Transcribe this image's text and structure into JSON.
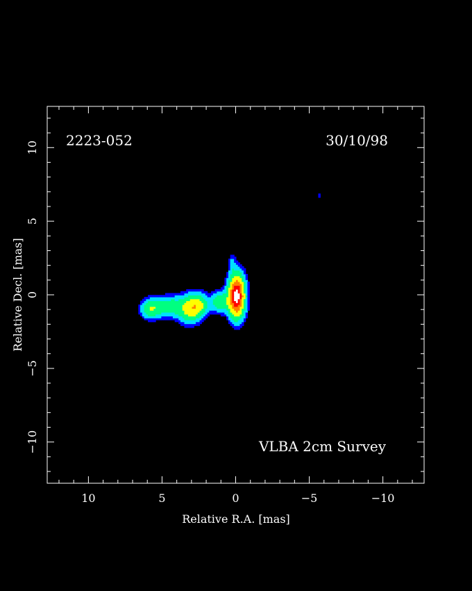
{
  "chart_data": {
    "type": "heatmap",
    "source_name": "2223-052",
    "date": "30/10/98",
    "survey_label": "VLBA 2cm Survey",
    "xlabel": "Relative R.A. [mas]",
    "ylabel": "Relative Decl. [mas]",
    "xlim": [
      12.8,
      -12.8
    ],
    "ylim": [
      -12.8,
      12.8
    ],
    "x_ticks": [
      10,
      5,
      0,
      -5,
      -10
    ],
    "y_ticks": [
      10,
      5,
      0,
      -5,
      -10
    ],
    "x_tick_labels": [
      "10",
      "5",
      "0",
      "−5",
      "−10"
    ],
    "y_tick_labels": [
      "10",
      "5",
      "0",
      "−5",
      "−10"
    ],
    "colormap": [
      "#0000ff",
      "#00e0ff",
      "#00ff80",
      "#ffff00",
      "#ff8000",
      "#ff0000",
      "#ffffff"
    ],
    "components": [
      {
        "x": 0.0,
        "y": 0.0,
        "peak": 1.0,
        "sx": 0.35,
        "sy": 0.9
      },
      {
        "x": 1.1,
        "y": -0.4,
        "peak": 0.28,
        "sx": 0.4,
        "sy": 0.45
      },
      {
        "x": 2.6,
        "y": -0.6,
        "peak": 0.3,
        "sx": 0.45,
        "sy": 0.5
      },
      {
        "x": 3.2,
        "y": -0.9,
        "peak": 0.34,
        "sx": 0.5,
        "sy": 0.6
      },
      {
        "x": 4.4,
        "y": -0.7,
        "peak": 0.22,
        "sx": 0.5,
        "sy": 0.45
      },
      {
        "x": 5.5,
        "y": -0.8,
        "peak": 0.22,
        "sx": 0.5,
        "sy": 0.45
      },
      {
        "x": 6.0,
        "y": -0.9,
        "peak": 0.16,
        "sx": 0.35,
        "sy": 0.4
      },
      {
        "x": 0.3,
        "y": 2.2,
        "peak": 0.1,
        "sx": 0.15,
        "sy": 0.4
      },
      {
        "x": -5.6,
        "y": 6.8,
        "peak": 0.06,
        "sx": 0.06,
        "sy": 0.15
      }
    ]
  }
}
